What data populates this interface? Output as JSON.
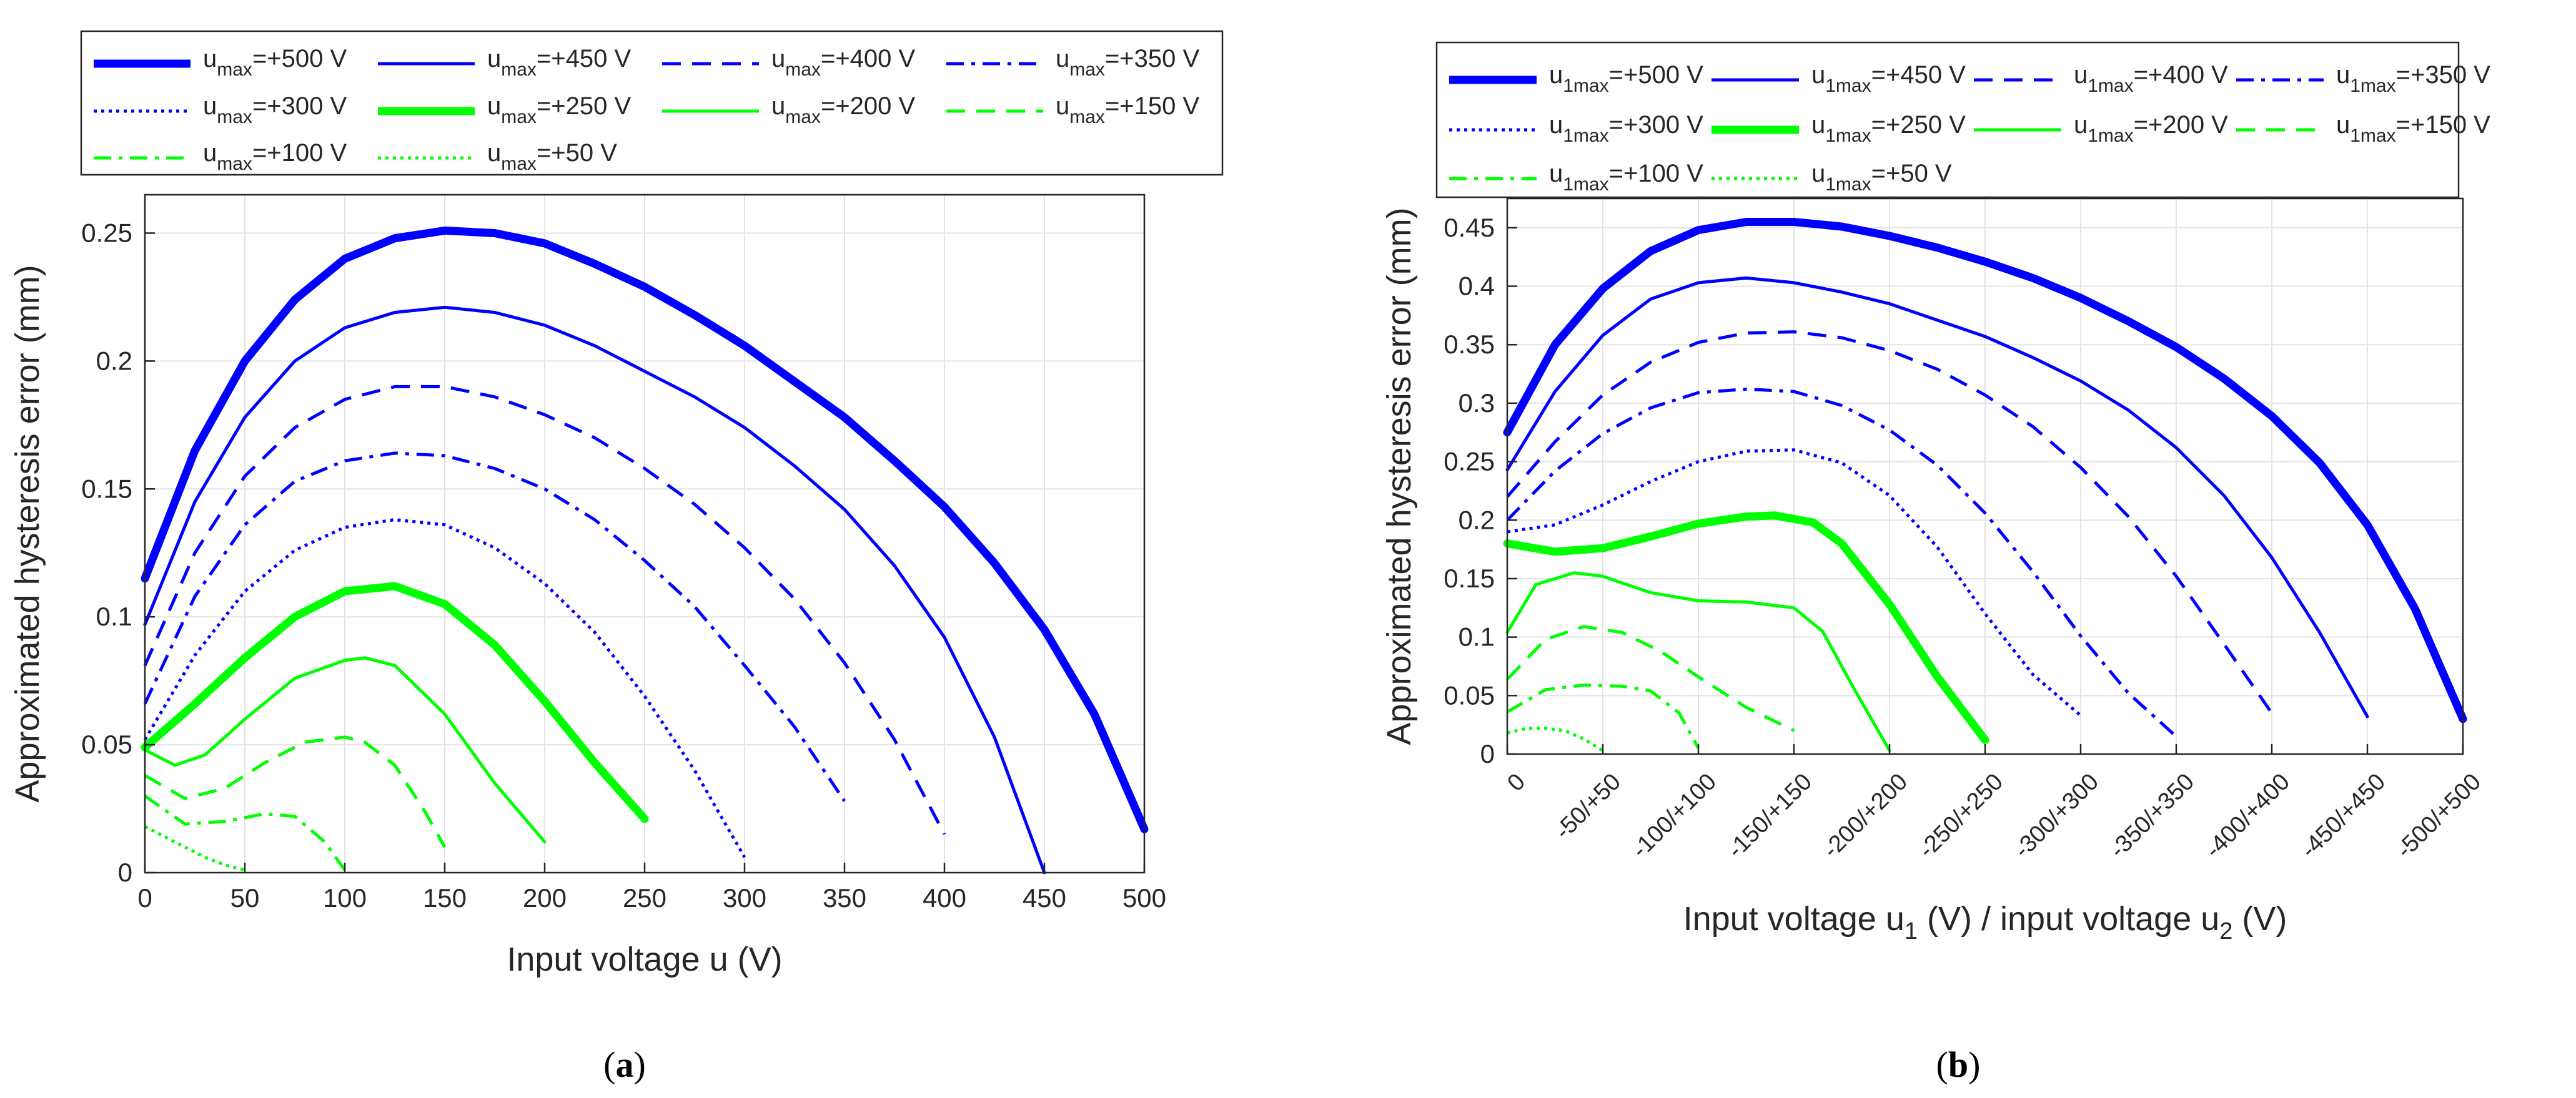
{
  "chart_data": [
    {
      "panel": "a",
      "type": "line",
      "caption_letter": "a",
      "xlabel": "Input voltage u (V)",
      "ylabel": "Approximated hysteresis error (mm)",
      "xlim": [
        0,
        500
      ],
      "ylim": [
        0,
        0.265
      ],
      "xticks": [
        0,
        50,
        100,
        150,
        200,
        250,
        300,
        350,
        400,
        450,
        500
      ],
      "xtick_labels": [
        "0",
        "50",
        "100",
        "150",
        "200",
        "250",
        "300",
        "350",
        "400",
        "450",
        "500"
      ],
      "yticks": [
        0,
        0.05,
        0.1,
        0.15,
        0.2,
        0.25
      ],
      "ytick_labels": [
        "0",
        "0.05",
        "0.1",
        "0.15",
        "0.2",
        "0.25"
      ],
      "grid": true,
      "legend_placement": "top",
      "series": [
        {
          "name": "+500 V",
          "legend_sym": "u",
          "legend_sub": "max",
          "legend_val": "=+500 V",
          "color": "#0000ff",
          "style": "solid-thick",
          "x": [
            0,
            25,
            50,
            75,
            100,
            125,
            150,
            175,
            200,
            225,
            250,
            275,
            300,
            325,
            350,
            375,
            400,
            425,
            450,
            475,
            500
          ],
          "y": [
            0.115,
            0.165,
            0.2,
            0.224,
            0.24,
            0.248,
            0.251,
            0.25,
            0.246,
            0.238,
            0.229,
            0.218,
            0.206,
            0.192,
            0.178,
            0.161,
            0.143,
            0.121,
            0.095,
            0.062,
            0.017
          ]
        },
        {
          "name": "+450 V",
          "legend_sym": "u",
          "legend_sub": "max",
          "legend_val": "=+450 V",
          "color": "#0000ff",
          "style": "solid",
          "x": [
            0,
            25,
            50,
            75,
            100,
            125,
            150,
            175,
            200,
            225,
            250,
            275,
            300,
            325,
            350,
            375,
            400,
            425,
            450
          ],
          "y": [
            0.097,
            0.145,
            0.178,
            0.2,
            0.213,
            0.219,
            0.221,
            0.219,
            0.214,
            0.206,
            0.196,
            0.186,
            0.174,
            0.159,
            0.142,
            0.12,
            0.092,
            0.053,
            0.0
          ]
        },
        {
          "name": "+400 V",
          "legend_sym": "u",
          "legend_sub": "max",
          "legend_val": "=+400 V",
          "color": "#0000ff",
          "style": "dashed",
          "x": [
            0,
            25,
            50,
            75,
            100,
            125,
            150,
            175,
            200,
            225,
            250,
            275,
            300,
            325,
            350,
            375,
            400
          ],
          "y": [
            0.081,
            0.125,
            0.155,
            0.174,
            0.185,
            0.19,
            0.19,
            0.186,
            0.179,
            0.17,
            0.158,
            0.144,
            0.127,
            0.107,
            0.082,
            0.052,
            0.015
          ]
        },
        {
          "name": "+350 V",
          "legend_sym": "u",
          "legend_sub": "max",
          "legend_val": "=+350 V",
          "color": "#0000ff",
          "style": "dashdot",
          "x": [
            0,
            25,
            50,
            75,
            100,
            125,
            150,
            175,
            200,
            225,
            250,
            275,
            300,
            325,
            350
          ],
          "y": [
            0.066,
            0.108,
            0.136,
            0.153,
            0.161,
            0.164,
            0.163,
            0.158,
            0.15,
            0.138,
            0.122,
            0.104,
            0.081,
            0.057,
            0.028
          ]
        },
        {
          "name": "+300 V",
          "legend_sym": "u",
          "legend_sub": "max",
          "legend_val": "=+300 V",
          "color": "#0000ff",
          "style": "dotted",
          "x": [
            0,
            25,
            50,
            75,
            100,
            125,
            150,
            175,
            200,
            225,
            250,
            275,
            300
          ],
          "y": [
            0.052,
            0.085,
            0.11,
            0.126,
            0.135,
            0.138,
            0.136,
            0.127,
            0.113,
            0.094,
            0.069,
            0.04,
            0.006
          ]
        },
        {
          "name": "+250 V",
          "legend_sym": "u",
          "legend_sub": "max",
          "legend_val": "=+250 V",
          "color": "#00ff00",
          "style": "solid-thick",
          "x": [
            0,
            25,
            50,
            75,
            100,
            125,
            150,
            175,
            200,
            225,
            250
          ],
          "y": [
            0.049,
            0.066,
            0.084,
            0.1,
            0.11,
            0.112,
            0.105,
            0.089,
            0.067,
            0.043,
            0.021
          ]
        },
        {
          "name": "+200 V",
          "legend_sym": "u",
          "legend_sub": "max",
          "legend_val": "=+200 V",
          "color": "#00ff00",
          "style": "solid",
          "x": [
            0,
            15,
            30,
            50,
            75,
            100,
            110,
            125,
            150,
            175,
            200
          ],
          "y": [
            0.048,
            0.042,
            0.046,
            0.06,
            0.076,
            0.083,
            0.084,
            0.081,
            0.062,
            0.035,
            0.012
          ]
        },
        {
          "name": "+150 V",
          "legend_sym": "u",
          "legend_sub": "max",
          "legend_val": "=+150 V",
          "color": "#00ff00",
          "style": "dashed",
          "x": [
            0,
            20,
            40,
            60,
            80,
            100,
            110,
            125,
            140,
            150
          ],
          "y": [
            0.038,
            0.029,
            0.033,
            0.043,
            0.051,
            0.053,
            0.051,
            0.042,
            0.024,
            0.01
          ]
        },
        {
          "name": "+100 V",
          "legend_sym": "u",
          "legend_sub": "max",
          "legend_val": "=+100 V",
          "color": "#00ff00",
          "style": "dashdot",
          "x": [
            0,
            20,
            40,
            60,
            75,
            90,
            100
          ],
          "y": [
            0.03,
            0.019,
            0.02,
            0.023,
            0.022,
            0.012,
            0.001
          ]
        },
        {
          "name": "+50 V",
          "legend_sym": "u",
          "legend_sub": "max",
          "legend_val": "=+50 V",
          "color": "#00ff00",
          "style": "dotted",
          "x": [
            0,
            10,
            20,
            30,
            40,
            50
          ],
          "y": [
            0.018,
            0.014,
            0.01,
            0.006,
            0.003,
            0.001
          ]
        }
      ]
    },
    {
      "panel": "b",
      "type": "line",
      "caption_letter": "b",
      "xlabel": "Input voltage u",
      "xlabel_sub1": "1",
      "xlabel_mid": " (V) / input voltage u",
      "xlabel_sub2": "2",
      "xlabel_end": " (V)",
      "ylabel": "Approximated hysteresis error (mm)",
      "xlim": [
        0,
        500
      ],
      "ylim": [
        0,
        0.475
      ],
      "xticks": [
        0,
        50,
        100,
        150,
        200,
        250,
        300,
        350,
        400,
        450,
        500
      ],
      "xtick_labels": [
        "0",
        "-50/+50",
        "-100/+100",
        "-150/+150",
        "-200/+200",
        "-250/+250",
        "-300/+300",
        "-350/+350",
        "-400/+400",
        "-450/+450",
        "-500/+500"
      ],
      "yticks": [
        0,
        0.05,
        0.1,
        0.15,
        0.2,
        0.25,
        0.3,
        0.35,
        0.4,
        0.45
      ],
      "ytick_labels": [
        "0",
        "0.05",
        "0.1",
        "0.15",
        "0.2",
        "0.25",
        "0.3",
        "0.35",
        "0.4",
        "0.45"
      ],
      "grid": true,
      "legend_placement": "top",
      "series": [
        {
          "name": "+500 V",
          "legend_sym": "u",
          "legend_sub": "1max",
          "legend_val": "=+500 V",
          "color": "#0000ff",
          "style": "solid-thick",
          "x": [
            0,
            25,
            50,
            75,
            100,
            125,
            150,
            175,
            200,
            225,
            250,
            275,
            300,
            325,
            350,
            375,
            400,
            425,
            450,
            475,
            500
          ],
          "y": [
            0.275,
            0.35,
            0.398,
            0.43,
            0.448,
            0.455,
            0.455,
            0.451,
            0.443,
            0.433,
            0.421,
            0.407,
            0.39,
            0.37,
            0.348,
            0.321,
            0.289,
            0.249,
            0.196,
            0.124,
            0.03
          ]
        },
        {
          "name": "+450 V",
          "legend_sym": "u",
          "legend_sub": "1max",
          "legend_val": "=+450 V",
          "color": "#0000ff",
          "style": "solid",
          "x": [
            0,
            25,
            50,
            75,
            100,
            125,
            150,
            175,
            200,
            225,
            250,
            275,
            300,
            325,
            350,
            375,
            400,
            425,
            450
          ],
          "y": [
            0.243,
            0.31,
            0.358,
            0.389,
            0.403,
            0.407,
            0.403,
            0.395,
            0.385,
            0.371,
            0.357,
            0.339,
            0.319,
            0.294,
            0.262,
            0.221,
            0.168,
            0.104,
            0.032
          ]
        },
        {
          "name": "+400 V",
          "legend_sym": "u",
          "legend_sub": "1max",
          "legend_val": "=+400 V",
          "color": "#0000ff",
          "style": "dashed",
          "x": [
            0,
            25,
            50,
            75,
            100,
            125,
            150,
            175,
            200,
            225,
            250,
            275,
            300,
            325,
            350,
            375,
            400
          ],
          "y": [
            0.22,
            0.267,
            0.307,
            0.335,
            0.352,
            0.36,
            0.361,
            0.356,
            0.345,
            0.329,
            0.307,
            0.28,
            0.245,
            0.203,
            0.152,
            0.094,
            0.035
          ]
        },
        {
          "name": "+350 V",
          "legend_sym": "u",
          "legend_sub": "1max",
          "legend_val": "=+350 V",
          "color": "#0000ff",
          "style": "dashdot",
          "x": [
            0,
            25,
            50,
            75,
            100,
            125,
            150,
            175,
            200,
            225,
            250,
            275,
            300,
            325,
            350
          ],
          "y": [
            0.2,
            0.242,
            0.274,
            0.296,
            0.309,
            0.312,
            0.31,
            0.298,
            0.277,
            0.247,
            0.206,
            0.156,
            0.101,
            0.052,
            0.015
          ]
        },
        {
          "name": "+300 V",
          "legend_sym": "u",
          "legend_sub": "1max",
          "legend_val": "=+300 V",
          "color": "#0000ff",
          "style": "dotted",
          "x": [
            0,
            25,
            50,
            75,
            100,
            125,
            150,
            175,
            200,
            225,
            250,
            275,
            300
          ],
          "y": [
            0.19,
            0.196,
            0.213,
            0.233,
            0.25,
            0.259,
            0.26,
            0.249,
            0.221,
            0.177,
            0.12,
            0.068,
            0.033
          ]
        },
        {
          "name": "+250 V",
          "legend_sym": "u",
          "legend_sub": "1max",
          "legend_val": "=+250 V",
          "color": "#00ff00",
          "style": "solid-thick",
          "x": [
            0,
            25,
            50,
            75,
            100,
            125,
            140,
            160,
            175,
            200,
            225,
            250
          ],
          "y": [
            0.18,
            0.173,
            0.176,
            0.186,
            0.197,
            0.203,
            0.204,
            0.198,
            0.18,
            0.128,
            0.066,
            0.012
          ]
        },
        {
          "name": "+200 V",
          "legend_sym": "u",
          "legend_sub": "1max",
          "legend_val": "=+200 V",
          "color": "#00ff00",
          "style": "solid",
          "x": [
            0,
            15,
            35,
            50,
            75,
            100,
            125,
            150,
            165,
            180,
            200
          ],
          "y": [
            0.104,
            0.145,
            0.155,
            0.152,
            0.138,
            0.131,
            0.13,
            0.125,
            0.105,
            0.06,
            0.003
          ]
        },
        {
          "name": "+150 V",
          "legend_sym": "u",
          "legend_sub": "1max",
          "legend_val": "=+150 V",
          "color": "#00ff00",
          "style": "dashed",
          "x": [
            0,
            20,
            40,
            60,
            80,
            100,
            125,
            150
          ],
          "y": [
            0.064,
            0.098,
            0.109,
            0.104,
            0.088,
            0.066,
            0.04,
            0.02
          ]
        },
        {
          "name": "+100 V",
          "legend_sym": "u",
          "legend_sub": "1max",
          "legend_val": "=+100 V",
          "color": "#00ff00",
          "style": "dashdot",
          "x": [
            0,
            20,
            40,
            60,
            75,
            90,
            100
          ],
          "y": [
            0.036,
            0.055,
            0.059,
            0.058,
            0.054,
            0.035,
            0.005
          ]
        },
        {
          "name": "+50 V",
          "legend_sym": "u",
          "legend_sub": "1max",
          "legend_val": "=+50 V",
          "color": "#00ff00",
          "style": "dotted",
          "x": [
            0,
            10,
            20,
            30,
            40,
            50
          ],
          "y": [
            0.018,
            0.022,
            0.022,
            0.02,
            0.013,
            0.003
          ]
        }
      ]
    }
  ]
}
